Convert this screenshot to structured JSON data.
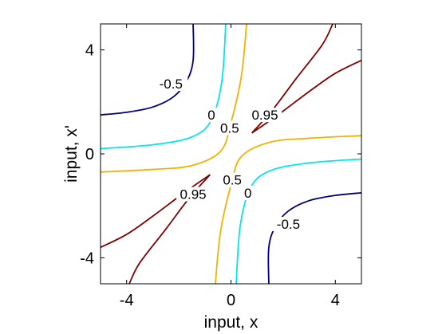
{
  "chart_data": {
    "type": "contour",
    "xlabel": "input, x",
    "ylabel": "input, x'",
    "xlim": [
      -5,
      5
    ],
    "ylim": [
      -5,
      5
    ],
    "x_ticks": [
      -4,
      0,
      4
    ],
    "y_ticks": [
      -4,
      0,
      4
    ],
    "x_tick_labels": [
      "-4",
      "0",
      "4"
    ],
    "y_tick_labels": [
      "-4",
      "0",
      "4"
    ],
    "grid": false,
    "levels": [
      {
        "value": -0.5,
        "color": "#00007f",
        "branches": [
          [
            [
              -5,
              1.5
            ],
            [
              -4,
              1.6
            ],
            [
              -3,
              1.8
            ],
            [
              -2.2,
              2.2
            ],
            [
              -1.7,
              2.8
            ],
            [
              -1.45,
              3.6
            ],
            [
              -1.45,
              5
            ]
          ],
          [
            [
              1.45,
              -5
            ],
            [
              1.45,
              -3.6
            ],
            [
              1.7,
              -2.8
            ],
            [
              2.2,
              -2.2
            ],
            [
              3,
              -1.8
            ],
            [
              4,
              -1.6
            ],
            [
              5,
              -1.5
            ]
          ]
        ],
        "labels": [
          {
            "text": "-0.5",
            "x": -2.3,
            "y": 2.7
          },
          {
            "text": "-0.5",
            "x": 2.2,
            "y": -2.7
          }
        ]
      },
      {
        "value": 0,
        "color": "#00e5ee",
        "branches": [
          [
            [
              -5,
              0.2
            ],
            [
              -3,
              0.35
            ],
            [
              -1.5,
              0.65
            ],
            [
              -0.75,
              1.3
            ],
            [
              -0.35,
              2.8
            ],
            [
              -0.2,
              5
            ]
          ],
          [
            [
              0.2,
              -5
            ],
            [
              0.35,
              -2.8
            ],
            [
              0.75,
              -1.3
            ],
            [
              1.5,
              -0.65
            ],
            [
              3,
              -0.35
            ],
            [
              5,
              -0.2
            ]
          ]
        ],
        "labels": [
          {
            "text": "0",
            "x": -0.75,
            "y": 1.5
          },
          {
            "text": "0",
            "x": 0.65,
            "y": -1.5
          }
        ]
      },
      {
        "value": 0.5,
        "color": "#f5b000",
        "branches": [
          [
            [
              -5,
              -0.7
            ],
            [
              -3,
              -0.6
            ],
            [
              -1.5,
              -0.45
            ],
            [
              -0.4,
              0.1
            ],
            [
              0,
              1.2
            ],
            [
              0.4,
              3
            ],
            [
              0.6,
              5
            ]
          ],
          [
            [
              -0.6,
              -5
            ],
            [
              -0.4,
              -3
            ],
            [
              0,
              -1.2
            ],
            [
              0.4,
              -0.1
            ],
            [
              1.5,
              0.45
            ],
            [
              3,
              0.6
            ],
            [
              5,
              0.7
            ]
          ]
        ],
        "labels": [
          {
            "text": "0.5",
            "x": -0.05,
            "y": 1.0
          },
          {
            "text": "0.5",
            "x": 0.05,
            "y": -1.0
          }
        ]
      },
      {
        "value": 0.95,
        "color": "#7f0000",
        "branches": [
          [
            [
              0.8,
              0.8
            ],
            [
              1.6,
              1.7
            ],
            [
              2.5,
              2.9
            ],
            [
              3.5,
              4.2
            ],
            [
              3.9,
              5
            ]
          ],
          [
            [
              0.8,
              0.8
            ],
            [
              1.8,
              1.5
            ],
            [
              3,
              2.4
            ],
            [
              4,
              3.1
            ],
            [
              5,
              3.6
            ]
          ],
          [
            [
              -0.8,
              -0.8
            ],
            [
              -1.6,
              -1.7
            ],
            [
              -2.5,
              -2.9
            ],
            [
              -3.5,
              -4.2
            ],
            [
              -3.9,
              -5
            ]
          ],
          [
            [
              -0.8,
              -0.8
            ],
            [
              -1.8,
              -1.5
            ],
            [
              -3,
              -2.4
            ],
            [
              -4,
              -3.1
            ],
            [
              -5,
              -3.6
            ]
          ]
        ],
        "labels": [
          {
            "text": "0.95",
            "x": 1.3,
            "y": 1.5
          },
          {
            "text": "0.95",
            "x": -1.45,
            "y": -1.55
          }
        ]
      }
    ]
  }
}
